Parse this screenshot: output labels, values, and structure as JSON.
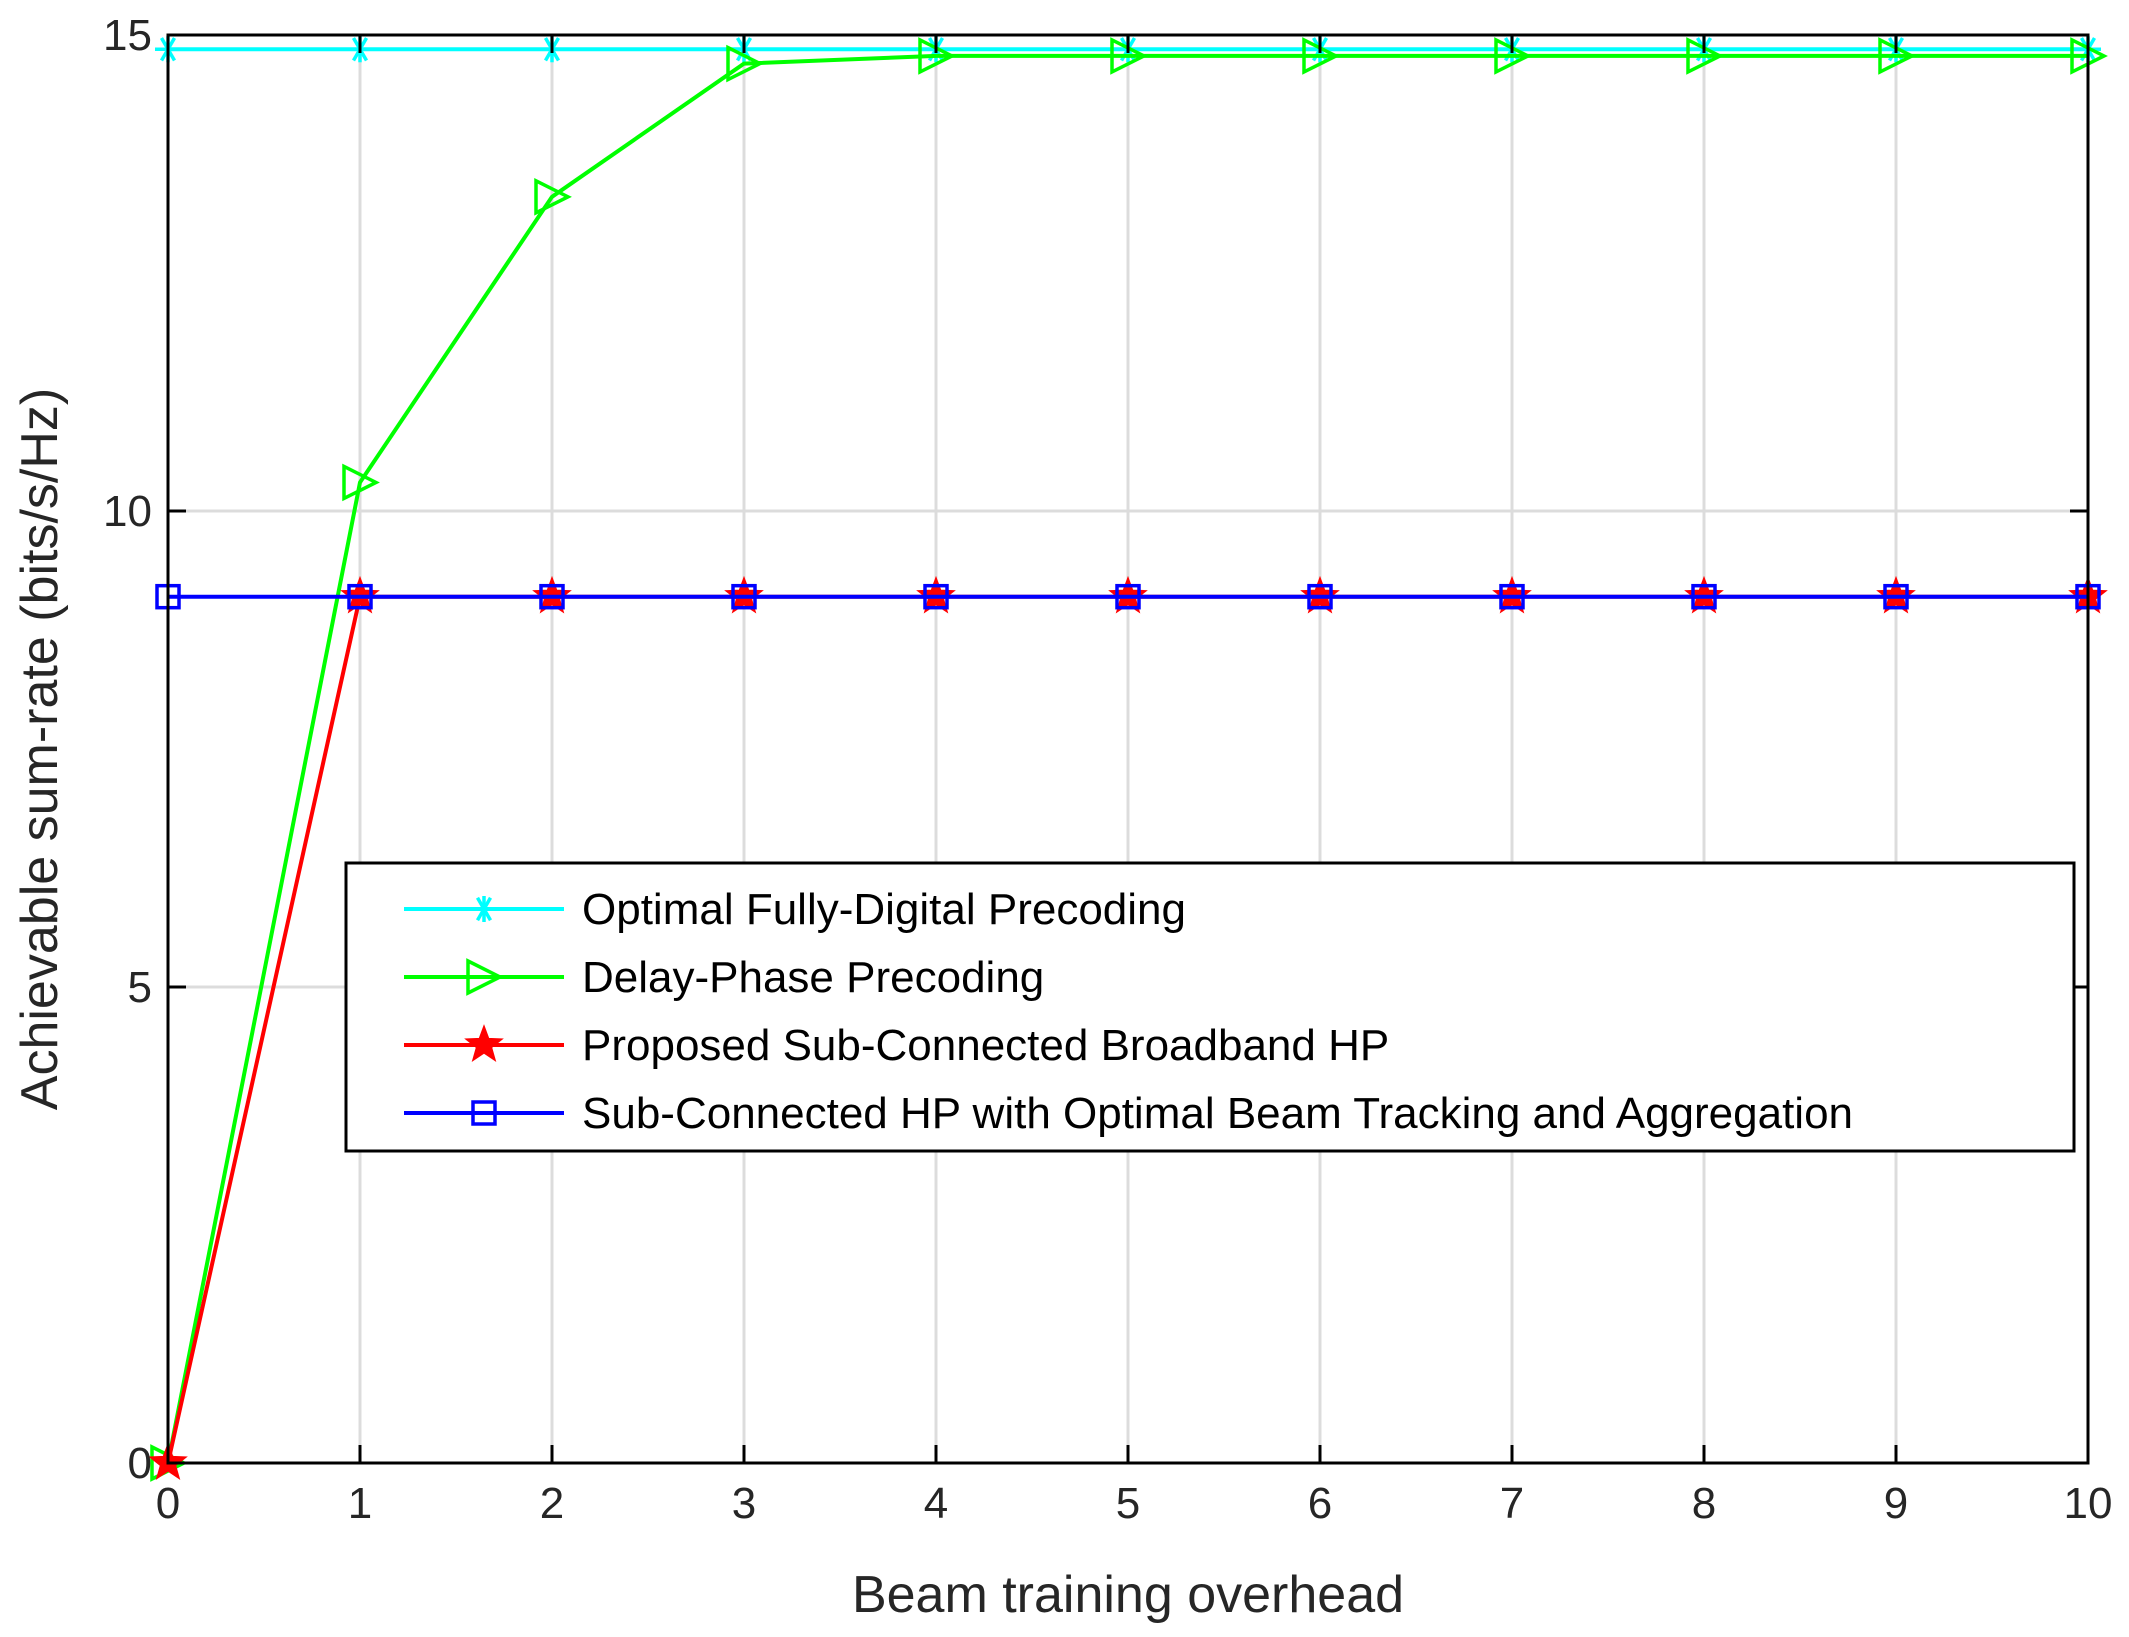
{
  "chart_data": {
    "type": "line",
    "title": "",
    "xlabel": "Beam training overhead",
    "ylabel": "Achievable sum-rate (bits/s/Hz)",
    "xlim": [
      0,
      10
    ],
    "ylim": [
      0,
      15
    ],
    "xticks": [
      0,
      1,
      2,
      3,
      4,
      5,
      6,
      7,
      8,
      9,
      10
    ],
    "yticks": [
      0,
      5,
      10,
      15
    ],
    "grid": true,
    "legend_position": "lower-right",
    "x": [
      0,
      1,
      2,
      3,
      4,
      5,
      6,
      7,
      8,
      9,
      10
    ],
    "series": [
      {
        "name": "Optimal Fully-Digital Precoding",
        "color": "#00FFFF",
        "marker": "asterisk",
        "values": [
          14.85,
          14.85,
          14.85,
          14.85,
          14.85,
          14.85,
          14.85,
          14.85,
          14.85,
          14.85,
          14.85
        ]
      },
      {
        "name": "Delay-Phase Precoding",
        "color": "#00FF00",
        "marker": "triangle-right",
        "values": [
          0,
          10.3,
          13.3,
          14.7,
          14.78,
          14.78,
          14.78,
          14.78,
          14.78,
          14.78,
          14.78
        ]
      },
      {
        "name": "Proposed Sub-Connected Broadband HP",
        "color": "#FF0000",
        "marker": "star",
        "values": [
          0,
          9.1,
          9.1,
          9.1,
          9.1,
          9.1,
          9.1,
          9.1,
          9.1,
          9.1,
          9.1
        ]
      },
      {
        "name": "Sub-Connected HP with Optimal Beam Tracking and Aggregation",
        "color": "#0000FF",
        "marker": "square",
        "values": [
          9.1,
          9.1,
          9.1,
          9.1,
          9.1,
          9.1,
          9.1,
          9.1,
          9.1,
          9.1,
          9.1
        ]
      }
    ]
  }
}
